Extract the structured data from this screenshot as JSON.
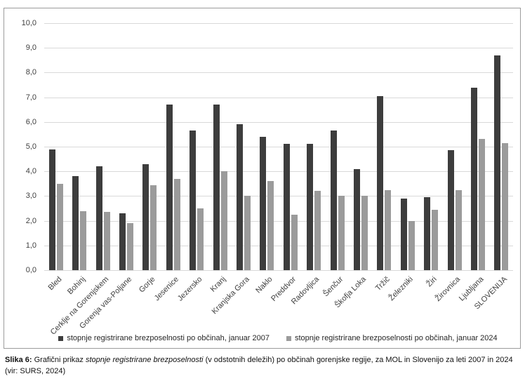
{
  "chart_data": {
    "type": "bar",
    "title": "",
    "xlabel": "",
    "ylabel": "",
    "ylim": [
      0,
      10
    ],
    "ytick_step": 1,
    "ytick_format": "comma-decimal",
    "grid": true,
    "legend_position": "bottom-center",
    "categories": [
      "Bled",
      "Bohinj",
      "Cerklje na Gorenjskem",
      "Gorenja vas-Poljane",
      "Gorje",
      "Jesenice",
      "Jezersko",
      "Kranj",
      "Kranjska Gora",
      "Naklo",
      "Preddvor",
      "Radovljica",
      "Šenčur",
      "Škofja Loka",
      "Tržič",
      "Železniki",
      "Žiri",
      "Žirovnica",
      "Ljubljana",
      "SLOVENIJA"
    ],
    "series": [
      {
        "name": "stopnje registrirane brezposelnosti po občinah, januar 2007",
        "color": "#3d3d3d",
        "values": [
          4.9,
          3.8,
          4.2,
          2.3,
          4.3,
          6.7,
          5.65,
          6.7,
          5.9,
          5.4,
          5.1,
          5.1,
          5.65,
          4.1,
          7.05,
          2.9,
          2.95,
          4.85,
          7.4,
          8.7
        ]
      },
      {
        "name": "stopnje registrirane brezposelnosti po občinah, januar 2024",
        "color": "#9b9b9b",
        "values": [
          3.5,
          2.4,
          2.35,
          1.9,
          3.45,
          3.7,
          2.5,
          4.0,
          3.0,
          3.6,
          2.25,
          3.2,
          3.0,
          3.0,
          3.25,
          2.0,
          2.45,
          3.25,
          5.3,
          5.15
        ]
      }
    ]
  },
  "caption": {
    "label": "Slika 6:",
    "pre_italic": "Grafični prikaz",
    "italic": "stopnje registrirane brezposelnosti",
    "post_italic": "(v odstotnih deležih) po občinah gorenjske regije, za MOL in Slovenijo za leti 2007 in 2024 (vir: SURS, 2024)"
  },
  "colors": {
    "series_2007": "#3d3d3d",
    "series_2024": "#9b9b9b",
    "gridline": "#d9d9d9",
    "figure_border": "#9c9c9c",
    "text": "#262626"
  }
}
